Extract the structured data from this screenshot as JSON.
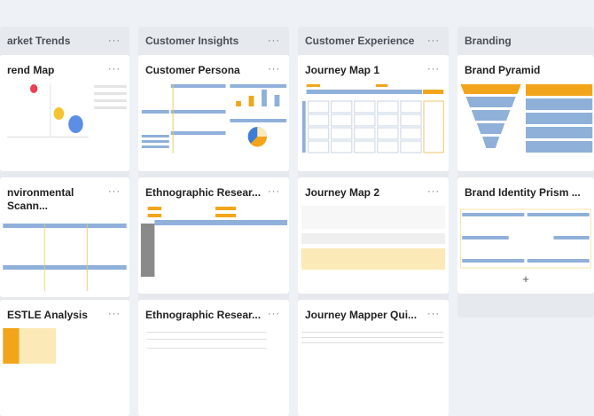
{
  "columns": [
    {
      "title": "arket Trends",
      "cards": [
        {
          "title": "rend Map"
        },
        {
          "title": "nvironmental Scann..."
        },
        {
          "title": "ESTLE Analysis"
        }
      ]
    },
    {
      "title": "Customer Insights",
      "cards": [
        {
          "title": "Customer Persona"
        },
        {
          "title": "Ethnographic Resear..."
        },
        {
          "title": "Ethnographic Resear..."
        }
      ]
    },
    {
      "title": "Customer Experience",
      "cards": [
        {
          "title": "Journey Map 1"
        },
        {
          "title": "Journey Map 2"
        },
        {
          "title": "Journey Mapper Qui..."
        }
      ]
    },
    {
      "title": "Branding",
      "cards": [
        {
          "title": "Brand Pyramid"
        },
        {
          "title": "Brand Identity Prism ..."
        }
      ]
    }
  ],
  "menu_label": "···",
  "add_label": "+",
  "colors": {
    "accent_orange": "#f2a51a",
    "accent_blue": "#8fb0d9",
    "column_bg": "#e6e9ee"
  }
}
